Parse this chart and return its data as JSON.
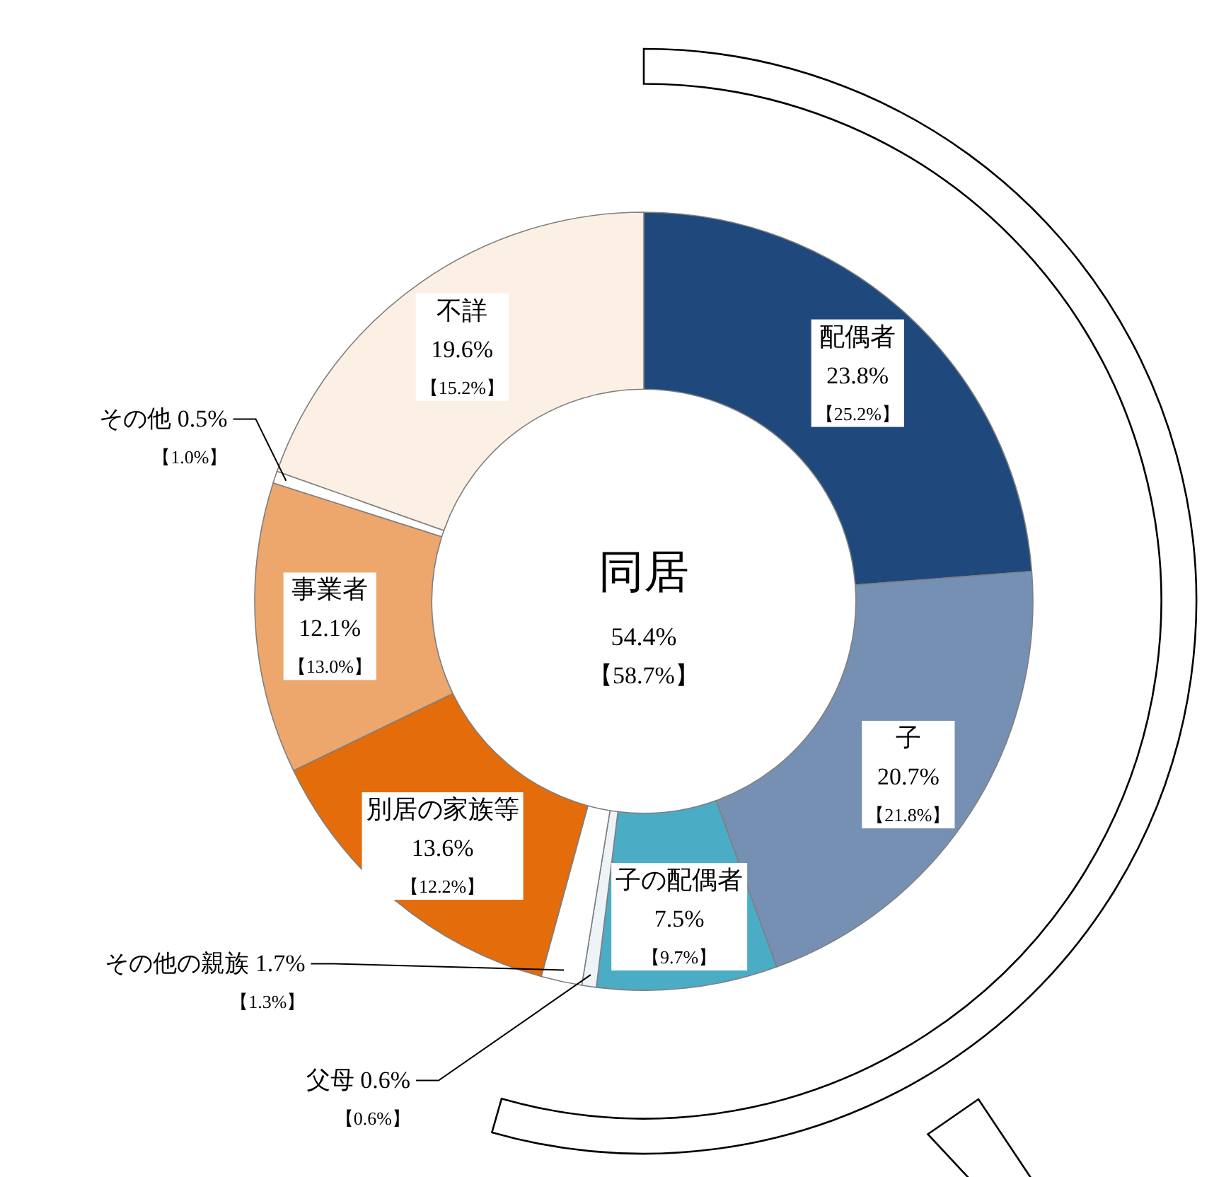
{
  "chart_data": {
    "type": "donut",
    "categories": [
      "配偶者",
      "子",
      "子の配偶者",
      "父母",
      "その他の親族",
      "別居の家族等",
      "事業者",
      "その他",
      "不詳"
    ],
    "values": [
      23.8,
      20.7,
      7.5,
      0.6,
      1.7,
      13.6,
      12.1,
      0.5,
      19.6
    ],
    "colors": [
      "#1f497d",
      "#7690b4",
      "#4bacc6",
      "#eef3f7",
      "#ffffff",
      "#e46c0a",
      "#eda66b",
      "#ffffff",
      "#fcefe3"
    ],
    "value_labels": [
      "23.8%",
      "20.7%",
      "7.5%",
      "0.6%",
      "1.7%",
      "13.6%",
      "12.1%",
      "0.5%",
      "19.6%"
    ],
    "annotations": [
      "同居",
      "54.4%",
      "【58.7%】",
      {
        "text": "【25.2%】",
        "x": "配偶者"
      },
      {
        "text": "【21.8%】",
        "x": "子"
      },
      {
        "text": "【9.7%】",
        "x": "子の配偶者"
      },
      {
        "text": "【0.6%】",
        "x": "父母"
      },
      {
        "text": "【1.3%】",
        "x": "その他の親族"
      },
      {
        "text": "【12.2%】",
        "x": "別居の家族等"
      },
      {
        "text": "【13.0%】",
        "x": "事業者"
      },
      {
        "text": "【1.0%】",
        "x": "その他"
      },
      {
        "text": "【15.2%】",
        "x": "不詳"
      }
    ]
  }
}
